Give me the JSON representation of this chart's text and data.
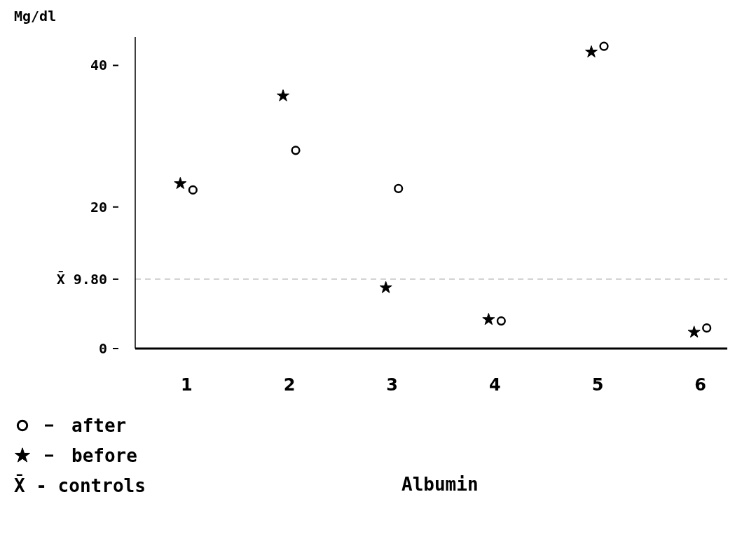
{
  "chart_data": {
    "type": "scatter",
    "xlabel": "Albumin",
    "ylabel": "Mg/dl",
    "categories": [
      "1",
      "2",
      "3",
      "4",
      "5",
      "6"
    ],
    "ylim": [
      0,
      44
    ],
    "yticks": [
      0,
      20,
      40
    ],
    "series": [
      {
        "name": "after",
        "color": "#000000",
        "marker": "circle",
        "values": [
          22.4,
          28.0,
          22.6,
          3.9,
          42.7,
          2.9
        ]
      },
      {
        "name": "before",
        "color": "#000000",
        "marker": "star",
        "values": [
          23.3,
          35.7,
          8.6,
          4.1,
          41.9,
          2.3
        ]
      }
    ],
    "ref_lines": [
      {
        "axis": "y",
        "value": 9.8,
        "label": "X̄ 9.80",
        "color": "#999999",
        "line_style": "dashed"
      }
    ],
    "annotations": [
      "X̄ - controls"
    ],
    "legend": "bottom left",
    "grid": false
  }
}
